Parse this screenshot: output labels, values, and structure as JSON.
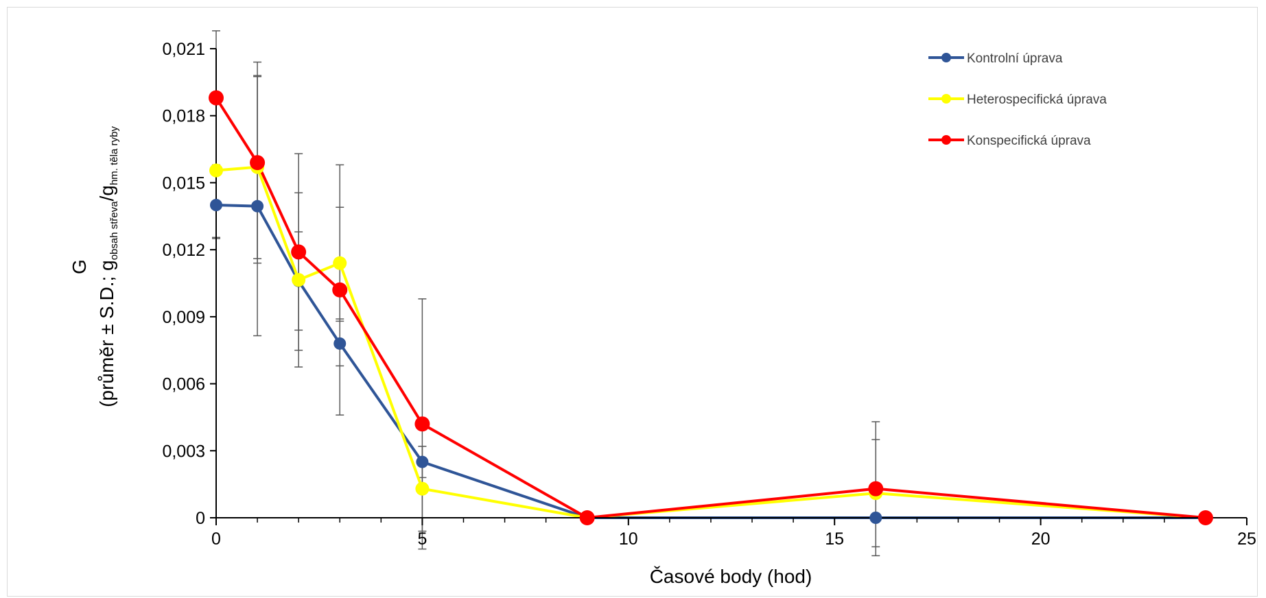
{
  "chart_data": {
    "type": "line",
    "xlabel": "Časové body (hod)",
    "ylabel": {
      "line1": "G",
      "line2_main": "(průměr ± S.D.; g",
      "sub1": "obsah střeva",
      "sep": "/g",
      "sub2": "hm. těla ryby"
    },
    "xlim": [
      0,
      25
    ],
    "ylim": [
      0,
      0.021
    ],
    "x_ticks": [
      {
        "value": 0,
        "label": "0"
      },
      {
        "value": 5,
        "label": "5"
      },
      {
        "value": 10,
        "label": "10"
      },
      {
        "value": 15,
        "label": "15"
      },
      {
        "value": 20,
        "label": "20"
      },
      {
        "value": 25,
        "label": "25"
      }
    ],
    "y_ticks": [
      {
        "value": 0,
        "label": "0"
      },
      {
        "value": 0.003,
        "label": "0,003"
      },
      {
        "value": 0.006,
        "label": "0,006"
      },
      {
        "value": 0.009,
        "label": "0,009"
      },
      {
        "value": 0.012,
        "label": "0,012"
      },
      {
        "value": 0.015,
        "label": "0,015"
      },
      {
        "value": 0.018,
        "label": "0,018"
      },
      {
        "value": 0.021,
        "label": "0,021"
      }
    ],
    "x_minor_step": 1,
    "grid": false,
    "legend_position": "top-right",
    "series": [
      {
        "name": "Kontrolní úprava",
        "color": "#2F5597",
        "points": [
          {
            "x": 0,
            "y": 0.014,
            "err": 0.0015
          },
          {
            "x": 1,
            "y": 0.01395,
            "err": 0.0058
          },
          {
            "x": 2,
            "y": 0.0106,
            "err": 0.0022
          },
          {
            "x": 3,
            "y": 0.0078,
            "err": 0.001
          },
          {
            "x": 5,
            "y": 0.0025,
            "err": 0.0007
          },
          {
            "x": 9,
            "y": 0.0,
            "err": 0
          },
          {
            "x": 16,
            "y": 0.0,
            "err": 0
          },
          {
            "x": 24,
            "y": 0.0,
            "err": 0
          }
        ]
      },
      {
        "name": "Heterospecifická úprava",
        "color": "#FFFF00",
        "points": [
          {
            "x": 0,
            "y": 0.01555,
            "err": 0.003
          },
          {
            "x": 1,
            "y": 0.0157,
            "err": 0.0041
          },
          {
            "x": 2,
            "y": 0.01065,
            "err": 0.0039
          },
          {
            "x": 3,
            "y": 0.0114,
            "err": 0.0025
          },
          {
            "x": 5,
            "y": 0.0013,
            "err": 0.0019
          },
          {
            "x": 9,
            "y": 0.0,
            "err": 0
          },
          {
            "x": 16,
            "y": 0.0011,
            "err": 0.0024
          },
          {
            "x": 24,
            "y": 0.0,
            "err": 0
          }
        ]
      },
      {
        "name": "Konspecifická úprava",
        "color": "#FF0000",
        "points": [
          {
            "x": 0,
            "y": 0.0188,
            "err": 0.003
          },
          {
            "x": 1,
            "y": 0.0159,
            "err": 0.0045
          },
          {
            "x": 2,
            "y": 0.0119,
            "err": 0.0044
          },
          {
            "x": 3,
            "y": 0.0102,
            "err": 0.0056
          },
          {
            "x": 5,
            "y": 0.0042,
            "err": 0.0056
          },
          {
            "x": 9,
            "y": 0.0,
            "err": 0
          },
          {
            "x": 16,
            "y": 0.0013,
            "err": 0.003
          },
          {
            "x": 24,
            "y": 0.0,
            "err": 0
          }
        ]
      }
    ]
  }
}
